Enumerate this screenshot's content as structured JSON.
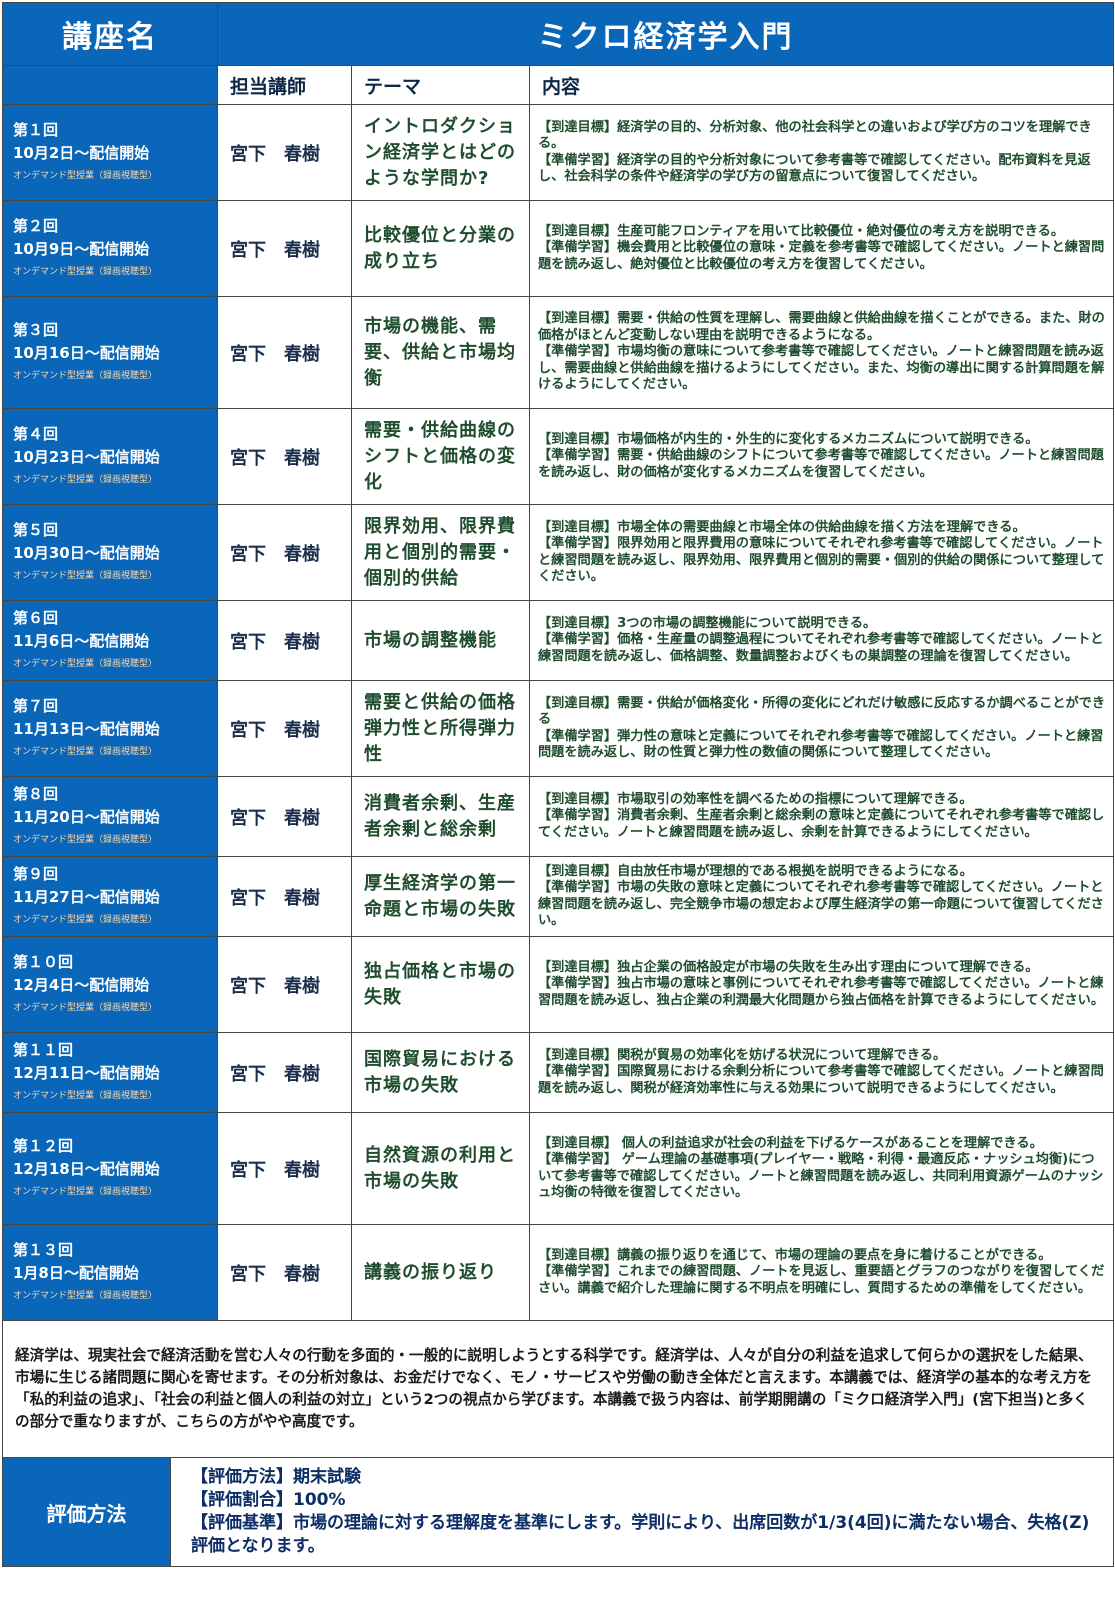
{
  "header": {
    "course_label": "講座名",
    "course_title": "ミクロ経済学入門",
    "col_lecturer": "担当講師",
    "col_theme": "テーマ",
    "col_content": "内容"
  },
  "sessions": [
    {
      "number": "第１回",
      "date": "10月2日〜配信開始",
      "type": "オンデマンド型授業（録画視聴型）",
      "lecturer": "宮下　春樹",
      "theme": "イントロダクション経済学とはどのような学問か?",
      "goal": "【到達目標】経済学の目的、分析対象、他の社会科学との違いおよび学び方のコツを理解できる。",
      "prep": "【準備学習】経済学の目的や分析対象について参考書等で確認してください。配布資料を見返し、社会科学の条件や経済学の学び方の留意点について復習してください。"
    },
    {
      "number": "第２回",
      "date": "10月9日〜配信開始",
      "type": "オンデマンド型授業（録画視聴型）",
      "lecturer": "宮下　春樹",
      "theme": "比較優位と分業の成り立ち",
      "goal": "【到達目標】生産可能フロンティアを用いて比較優位・絶対優位の考え方を説明できる。",
      "prep": "【準備学習】機会費用と比較優位の意味・定義を参考書等で確認してください。ノートと練習問題を読み返し、絶対優位と比較優位の考え方を復習してください。"
    },
    {
      "number": "第３回",
      "date": "10月16日〜配信開始",
      "type": "オンデマンド型授業（録画視聴型）",
      "lecturer": "宮下　春樹",
      "theme": "市場の機能、需要、供給と市場均衡",
      "goal": "【到達目標】需要・供給の性質を理解し、需要曲線と供給曲線を描くことができる。また、財の価格がほとんど変動しない理由を説明できるようになる。",
      "prep": "【準備学習】市場均衡の意味について参考書等で確認してください。ノートと練習問題を読み返し、需要曲線と供給曲線を描けるようにしてください。また、均衡の導出に関する計算問題を解けるようにしてください。"
    },
    {
      "number": "第４回",
      "date": "10月23日〜配信開始",
      "type": "オンデマンド型授業（録画視聴型）",
      "lecturer": "宮下　春樹",
      "theme": "需要・供給曲線のシフトと価格の変化",
      "goal": "【到達目標】市場価格が内生的・外生的に変化するメカニズムについて説明できる。",
      "prep": "【準備学習】需要・供給曲線のシフトについて参考書等で確認してください。ノートと練習問題を読み返し、財の価格が変化するメカニズムを復習してください。"
    },
    {
      "number": "第５回",
      "date": "10月30日〜配信開始",
      "type": "オンデマンド型授業（録画視聴型）",
      "lecturer": "宮下　春樹",
      "theme": "限界効用、限界費用と個別的需要・個別的供給",
      "goal": "【到達目標】市場全体の需要曲線と市場全体の供給曲線を描く方法を理解できる。",
      "prep": "【準備学習】限界効用と限界費用の意味についてそれぞれ参考書等で確認してください。ノートと練習問題を読み返し、限界効用、限界費用と個別的需要・個別的供給の関係について整理してください。"
    },
    {
      "number": "第６回",
      "date": "11月6日〜配信開始",
      "type": "オンデマンド型授業（録画視聴型）",
      "lecturer": "宮下　春樹",
      "theme": "市場の調整機能",
      "goal": "【到達目標】3つの市場の調整機能について説明できる。",
      "prep": "【準備学習】価格・生産量の調整過程についてそれぞれ参考書等で確認してください。ノートと練習問題を読み返し、価格調整、数量調整およびくもの巣調整の理論を復習してください。"
    },
    {
      "number": "第７回",
      "date": "11月13日〜配信開始",
      "type": "オンデマンド型授業（録画視聴型）",
      "lecturer": "宮下　春樹",
      "theme": "需要と供給の価格弾力性と所得弾力性",
      "goal": "【到達目標】需要・供給が価格変化・所得の変化にどれだけ敏感に反応するか調べることができる",
      "prep": "【準備学習】弾力性の意味と定義についてそれぞれ参考書等で確認してください。ノートと練習問題を読み返し、財の性質と弾力性の数値の関係について整理してください。"
    },
    {
      "number": "第８回",
      "date": "11月20日〜配信開始",
      "type": "オンデマンド型授業（録画視聴型）",
      "lecturer": "宮下　春樹",
      "theme": "消費者余剰、生産者余剰と総余剰",
      "goal": "【到達目標】市場取引の効率性を調べるための指標について理解できる。",
      "prep": "【準備学習】消費者余剰、生産者余剰と総余剰の意味と定義についてそれぞれ参考書等で確認してください。ノートと練習問題を読み返し、余剰を計算できるようにしてください。"
    },
    {
      "number": "第９回",
      "date": "11月27日〜配信開始",
      "type": "オンデマンド型授業（録画視聴型）",
      "lecturer": "宮下　春樹",
      "theme": "厚生経済学の第一命題と市場の失敗",
      "goal": "【到達目標】自由放任市場が理想的である根拠を説明できるようになる。",
      "prep": "【準備学習】市場の失敗の意味と定義についてそれぞれ参考書等で確認してください。ノートと練習問題を読み返し、完全競争市場の想定および厚生経済学の第一命題について復習してください。"
    },
    {
      "number": "第１０回",
      "date": "12月4日〜配信開始",
      "type": "オンデマンド型授業（録画視聴型）",
      "lecturer": "宮下　春樹",
      "theme": "独占価格と市場の失敗",
      "goal": "【到達目標】独占企業の価格設定が市場の失敗を生み出す理由について理解できる。",
      "prep": "【準備学習】独占市場の意味と事例についてそれぞれ参考書等で確認してください。ノートと練習問題を読み返し、独占企業の利潤最大化問題から独占価格を計算できるようにしてください。"
    },
    {
      "number": "第１１回",
      "date": "12月11日〜配信開始",
      "type": "オンデマンド型授業（録画視聴型）",
      "lecturer": "宮下　春樹",
      "theme": "国際貿易における市場の失敗",
      "goal": "【到達目標】関税が貿易の効率化を妨げる状況について理解できる。",
      "prep": "【準備学習】国際貿易における余剰分析について参考書等で確認してください。ノートと練習問題を読み返し、関税が経済効率性に与える効果について説明できるようにしてください。"
    },
    {
      "number": "第１２回",
      "date": "12月18日〜配信開始",
      "type": "オンデマンド型授業（録画視聴型）",
      "lecturer": "宮下　春樹",
      "theme": "自然資源の利用と市場の失敗",
      "goal": "【到達目標】 個人の利益追求が社会の利益を下げるケースがあることを理解できる。",
      "prep": "【準備学習】 ゲーム理論の基礎事項(プレイヤー・戦略・利得・最適反応・ナッシュ均衡)について参考書等で確認してください。ノートと練習問題を読み返し、共同利用資源ゲームのナッシュ均衡の特徴を復習してください。"
    },
    {
      "number": "第１３回",
      "date": "1月8日〜配信開始",
      "type": "オンデマンド型授業（録画視聴型）",
      "lecturer": "宮下　春樹",
      "theme": "講義の振り返り",
      "goal": "【到達目標】講義の振り返りを通じて、市場の理論の要点を身に着けることができる。",
      "prep": "【準備学習】これまでの練習問題、ノートを見返し、重要語とグラフのつながりを復習してください。講義で紹介した理論に関する不明点を明確にし、質問するための準備をしてください。"
    }
  ],
  "summary": "経済学は、現実社会で経済活動を営む人々の行動を多面的・一般的に説明しようとする科学です。経済学は、人々が自分の利益を追求して何らかの選択をした結果、市場に生じる諸問題に関心を寄せます。その分析対象は、お金だけでなく、モノ・サービスや労働の動き全体だと言えます。本講義では、経済学の基本的な考え方を「私的利益の追求」、「社会の利益と個人の利益の対立」という2つの視点から学びます。本講義で扱う内容は、前学期開講の「ミクロ経済学入門」(宮下担当)と多くの部分で重なりますが、こちらの方がやや高度です。",
  "evaluation": {
    "label": "評価方法",
    "method": "【評価方法】期末試験",
    "ratio": "【評価割合】100%",
    "criteria": "【評価基準】市場の理論に対する理解度を基準にします。学則により、出席回数が1/3(4回)に満たない場合、失格(Z)評価となります。"
  }
}
